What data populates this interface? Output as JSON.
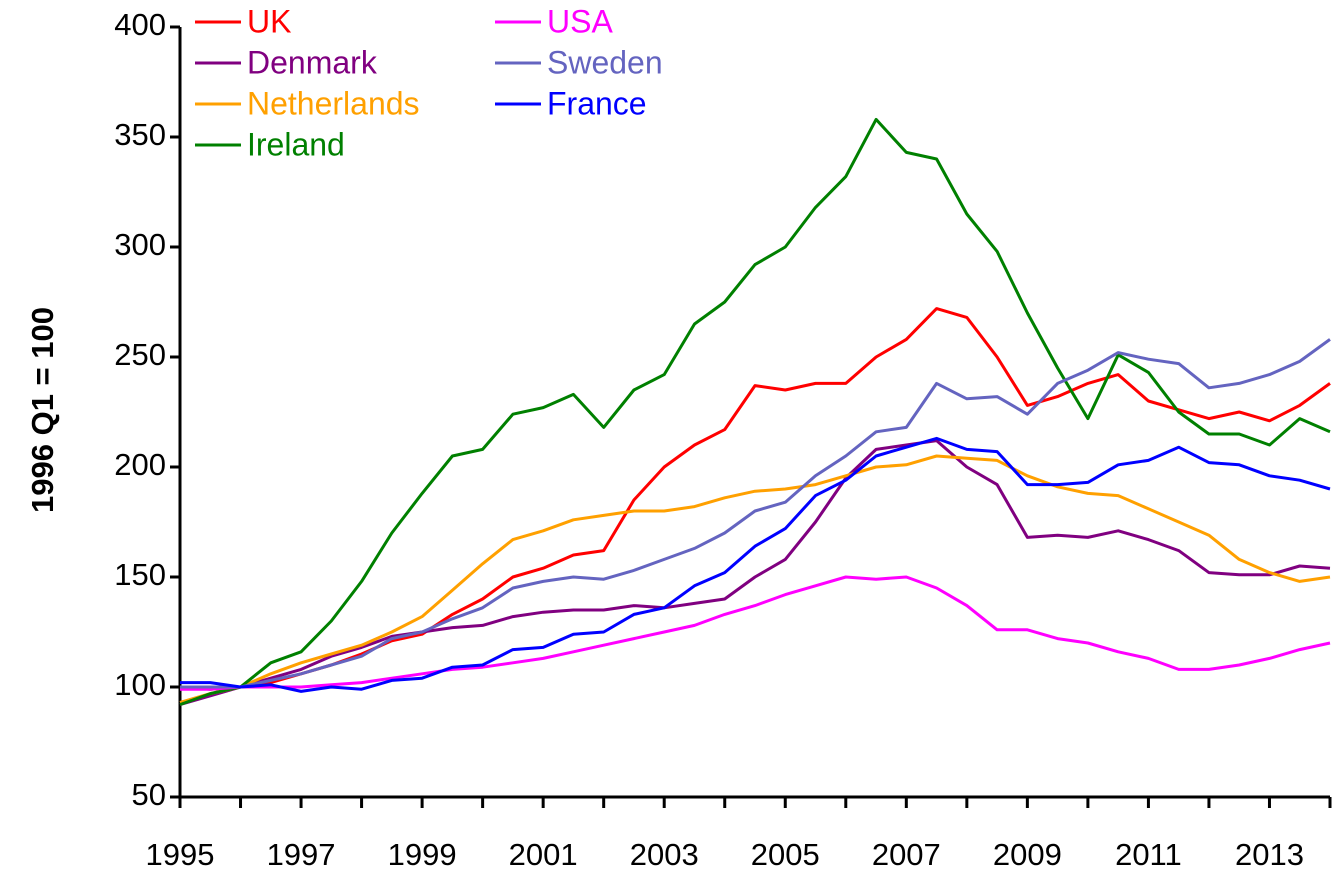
{
  "chart_data": {
    "type": "line",
    "ylabel": "1996 Q1 = 100",
    "x": [
      1995,
      1995.5,
      1996,
      1996.5,
      1997,
      1997.5,
      1998,
      1998.5,
      1999,
      1999.5,
      2000,
      2000.5,
      2001,
      2001.5,
      2002,
      2002.5,
      2003,
      2003.5,
      2004,
      2004.5,
      2005,
      2005.5,
      2006,
      2006.5,
      2007,
      2007.5,
      2008,
      2008.5,
      2009,
      2009.5,
      2010,
      2010.5,
      2011,
      2011.5,
      2012,
      2012.5,
      2013,
      2013.5,
      2014
    ],
    "series": [
      {
        "name": "UK",
        "color": "#ff0000",
        "values": [
          100,
          99,
          100,
          102,
          106,
          110,
          115,
          121,
          124,
          133,
          140,
          150,
          154,
          160,
          162,
          185,
          200,
          210,
          217,
          237,
          235,
          238,
          238,
          250,
          258,
          272,
          268,
          250,
          228,
          232,
          238,
          242,
          230,
          226,
          222,
          225,
          221,
          228,
          238
        ]
      },
      {
        "name": "Denmark",
        "color": "#800080",
        "values": [
          92,
          96,
          100,
          104,
          108,
          114,
          118,
          123,
          125,
          127,
          128,
          132,
          134,
          135,
          135,
          137,
          136,
          138,
          140,
          150,
          158,
          175,
          195,
          208,
          210,
          212,
          200,
          192,
          168,
          169,
          168,
          171,
          167,
          162,
          152,
          151,
          151,
          155,
          154
        ]
      },
      {
        "name": "Netherlands",
        "color": "#ffa000",
        "values": [
          93,
          97,
          100,
          106,
          111,
          115,
          119,
          125,
          132,
          144,
          156,
          167,
          171,
          176,
          178,
          180,
          180,
          182,
          186,
          189,
          190,
          192,
          196,
          200,
          201,
          205,
          204,
          203,
          196,
          191,
          188,
          187,
          181,
          175,
          169,
          158,
          152,
          148,
          150
        ]
      },
      {
        "name": "Ireland",
        "color": "#008000",
        "values": [
          92,
          97,
          100,
          111,
          116,
          130,
          148,
          170,
          188,
          205,
          208,
          224,
          227,
          233,
          218,
          235,
          242,
          265,
          275,
          292,
          300,
          318,
          332,
          358,
          343,
          340,
          315,
          298,
          270,
          245,
          222,
          251,
          243,
          225,
          215,
          215,
          210,
          222,
          216
        ]
      },
      {
        "name": "USA",
        "color": "#ff00ff",
        "values": [
          99,
          99,
          100,
          100,
          100,
          101,
          102,
          104,
          106,
          108,
          109,
          111,
          113,
          116,
          119,
          122,
          125,
          128,
          133,
          137,
          142,
          146,
          150,
          149,
          150,
          145,
          137,
          126,
          126,
          122,
          120,
          116,
          113,
          108,
          108,
          110,
          113,
          117,
          120
        ]
      },
      {
        "name": "Sweden",
        "color": "#6464c0",
        "values": [
          100,
          100,
          100,
          103,
          106,
          110,
          114,
          122,
          125,
          131,
          136,
          145,
          148,
          150,
          149,
          153,
          158,
          163,
          170,
          180,
          184,
          196,
          205,
          216,
          218,
          238,
          231,
          232,
          224,
          238,
          244,
          252,
          249,
          247,
          236,
          238,
          242,
          248,
          258
        ]
      },
      {
        "name": "France",
        "color": "#0000ff",
        "values": [
          102,
          102,
          100,
          101,
          98,
          100,
          99,
          103,
          104,
          109,
          110,
          117,
          118,
          124,
          125,
          133,
          136,
          146,
          152,
          164,
          172,
          187,
          194,
          205,
          209,
          213,
          208,
          207,
          192,
          192,
          193,
          201,
          203,
          209,
          202,
          201,
          196,
          194,
          190
        ]
      }
    ],
    "xlim": [
      1995,
      2014
    ],
    "xticks": [
      1995,
      1997,
      1999,
      2001,
      2003,
      2005,
      2007,
      2009,
      2011,
      2013
    ],
    "xminor_ticks": [
      1996,
      1998,
      2000,
      2002,
      2004,
      2006,
      2008,
      2010,
      2012,
      2014
    ],
    "ylim": [
      50,
      400
    ],
    "yticks": [
      50,
      100,
      150,
      200,
      250,
      300,
      350,
      400
    ],
    "grid": false,
    "legend": "upper left"
  }
}
